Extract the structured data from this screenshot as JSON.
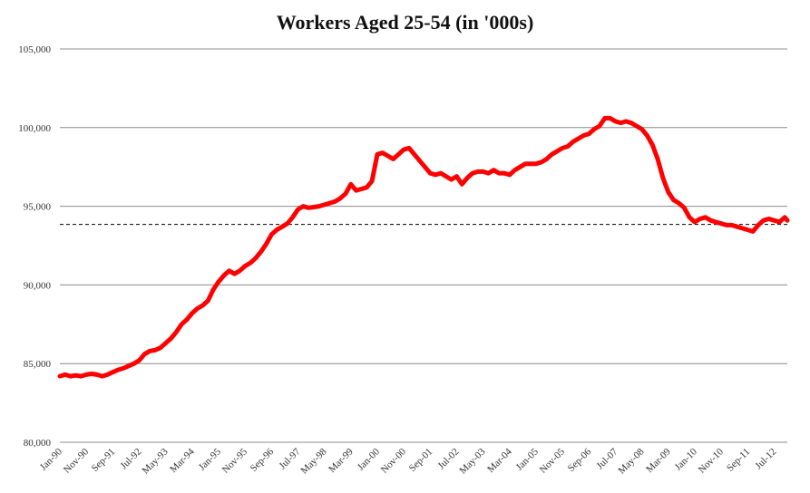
{
  "chart_data": {
    "type": "line",
    "title": "Workers Aged 25-54 (in '000s)",
    "xlabel": "",
    "ylabel": "",
    "ylim": [
      80000,
      105000
    ],
    "y_ticks": [
      "80,000",
      "85,000",
      "90,000",
      "95,000",
      "100,000",
      "105,000"
    ],
    "x_ticks": [
      "Jan-90",
      "Nov-90",
      "Sep-91",
      "Jul-92",
      "May-93",
      "Mar-94",
      "Jan-95",
      "Nov-95",
      "Sep-96",
      "Jul-97",
      "May-98",
      "Mar-99",
      "Jan-00",
      "Nov-00",
      "Sep-01",
      "Jul-02",
      "May-03",
      "Mar-04",
      "Jan-05",
      "Nov-05",
      "Sep-06",
      "Jul-07",
      "May-08",
      "Mar-09",
      "Jan-10",
      "Nov-10",
      "Sep-11",
      "Jul-12"
    ],
    "grid": true,
    "reference_line": {
      "value": 93850,
      "style": "dashed"
    },
    "colors": {
      "series": "#ff0000",
      "grid": "#8c8c8c",
      "reference": "#000000"
    },
    "series": [
      {
        "points": [
          [
            "Jan-90",
            84200
          ],
          [
            "Mar-90",
            84300
          ],
          [
            "May-90",
            84200
          ],
          [
            "Jul-90",
            84250
          ],
          [
            "Sep-90",
            84200
          ],
          [
            "Nov-90",
            84300
          ],
          [
            "Jan-91",
            84350
          ],
          [
            "Mar-91",
            84300
          ],
          [
            "May-91",
            84200
          ],
          [
            "Jul-91",
            84300
          ],
          [
            "Sep-91",
            84450
          ],
          [
            "Nov-91",
            84600
          ],
          [
            "Jan-92",
            84700
          ],
          [
            "Mar-92",
            84850
          ],
          [
            "May-92",
            85000
          ],
          [
            "Jul-92",
            85200
          ],
          [
            "Sep-92",
            85600
          ],
          [
            "Nov-92",
            85800
          ],
          [
            "Jan-93",
            85850
          ],
          [
            "Mar-93",
            86000
          ],
          [
            "May-93",
            86300
          ],
          [
            "Jul-93",
            86600
          ],
          [
            "Sep-93",
            87000
          ],
          [
            "Nov-93",
            87500
          ],
          [
            "Jan-94",
            87800
          ],
          [
            "Mar-94",
            88200
          ],
          [
            "May-94",
            88500
          ],
          [
            "Jul-94",
            88700
          ],
          [
            "Sep-94",
            89000
          ],
          [
            "Nov-94",
            89700
          ],
          [
            "Jan-95",
            90200
          ],
          [
            "Mar-95",
            90600
          ],
          [
            "May-95",
            90900
          ],
          [
            "Jul-95",
            90700
          ],
          [
            "Sep-95",
            90900
          ],
          [
            "Nov-95",
            91200
          ],
          [
            "Jan-96",
            91400
          ],
          [
            "Mar-96",
            91700
          ],
          [
            "May-96",
            92100
          ],
          [
            "Jul-96",
            92600
          ],
          [
            "Sep-96",
            93200
          ],
          [
            "Nov-96",
            93500
          ],
          [
            "Jan-97",
            93700
          ],
          [
            "Mar-97",
            93900
          ],
          [
            "May-97",
            94300
          ],
          [
            "Jul-97",
            94800
          ],
          [
            "Sep-97",
            95000
          ],
          [
            "Nov-97",
            94900
          ],
          [
            "Jan-98",
            94950
          ],
          [
            "Mar-98",
            95000
          ],
          [
            "May-98",
            95100
          ],
          [
            "Jul-98",
            95200
          ],
          [
            "Sep-98",
            95300
          ],
          [
            "Nov-98",
            95500
          ],
          [
            "Jan-99",
            95800
          ],
          [
            "Mar-99",
            96400
          ],
          [
            "May-99",
            96000
          ],
          [
            "Jul-99",
            96100
          ],
          [
            "Sep-99",
            96200
          ],
          [
            "Nov-99",
            96600
          ],
          [
            "Jan-00",
            98300
          ],
          [
            "Mar-00",
            98400
          ],
          [
            "May-00",
            98200
          ],
          [
            "Jul-00",
            98000
          ],
          [
            "Sep-00",
            98300
          ],
          [
            "Nov-00",
            98600
          ],
          [
            "Jan-01",
            98700
          ],
          [
            "Mar-01",
            98300
          ],
          [
            "May-01",
            97900
          ],
          [
            "Jul-01",
            97500
          ],
          [
            "Sep-01",
            97100
          ],
          [
            "Nov-01",
            97000
          ],
          [
            "Jan-02",
            97100
          ],
          [
            "Mar-02",
            96900
          ],
          [
            "May-02",
            96700
          ],
          [
            "Jul-02",
            96900
          ],
          [
            "Sep-02",
            96400
          ],
          [
            "Nov-02",
            96800
          ],
          [
            "Jan-03",
            97100
          ],
          [
            "Mar-03",
            97200
          ],
          [
            "May-03",
            97200
          ],
          [
            "Jul-03",
            97100
          ],
          [
            "Sep-03",
            97300
          ],
          [
            "Nov-03",
            97100
          ],
          [
            "Jan-04",
            97100
          ],
          [
            "Mar-04",
            97000
          ],
          [
            "May-04",
            97300
          ],
          [
            "Jul-04",
            97500
          ],
          [
            "Sep-04",
            97700
          ],
          [
            "Nov-04",
            97700
          ],
          [
            "Jan-05",
            97700
          ],
          [
            "Mar-05",
            97800
          ],
          [
            "May-05",
            98000
          ],
          [
            "Jul-05",
            98300
          ],
          [
            "Sep-05",
            98500
          ],
          [
            "Nov-05",
            98700
          ],
          [
            "Jan-06",
            98800
          ],
          [
            "Mar-06",
            99100
          ],
          [
            "May-06",
            99300
          ],
          [
            "Jul-06",
            99500
          ],
          [
            "Sep-06",
            99600
          ],
          [
            "Nov-06",
            99900
          ],
          [
            "Jan-07",
            100100
          ],
          [
            "Mar-07",
            100600
          ],
          [
            "May-07",
            100600
          ],
          [
            "Jul-07",
            100400
          ],
          [
            "Sep-07",
            100300
          ],
          [
            "Nov-07",
            100400
          ],
          [
            "Jan-08",
            100300
          ],
          [
            "Mar-08",
            100100
          ],
          [
            "May-08",
            99900
          ],
          [
            "Jul-08",
            99500
          ],
          [
            "Sep-08",
            98900
          ],
          [
            "Nov-08",
            98000
          ],
          [
            "Jan-09",
            96800
          ],
          [
            "Mar-09",
            95900
          ],
          [
            "May-09",
            95400
          ],
          [
            "Jul-09",
            95200
          ],
          [
            "Sep-09",
            94900
          ],
          [
            "Nov-09",
            94300
          ],
          [
            "Jan-10",
            94000
          ],
          [
            "Mar-10",
            94200
          ],
          [
            "May-10",
            94300
          ],
          [
            "Jul-10",
            94100
          ],
          [
            "Sep-10",
            94000
          ],
          [
            "Nov-10",
            93900
          ],
          [
            "Jan-11",
            93800
          ],
          [
            "Mar-11",
            93800
          ],
          [
            "May-11",
            93700
          ],
          [
            "Jul-11",
            93600
          ],
          [
            "Sep-11",
            93500
          ],
          [
            "Nov-11",
            93400
          ],
          [
            "Jan-12",
            93800
          ],
          [
            "Mar-12",
            94100
          ],
          [
            "May-12",
            94200
          ],
          [
            "Jul-12",
            94100
          ],
          [
            "Sep-12",
            94000
          ],
          [
            "Nov-12",
            94300
          ],
          [
            "Dec-12",
            94100
          ]
        ]
      }
    ]
  }
}
